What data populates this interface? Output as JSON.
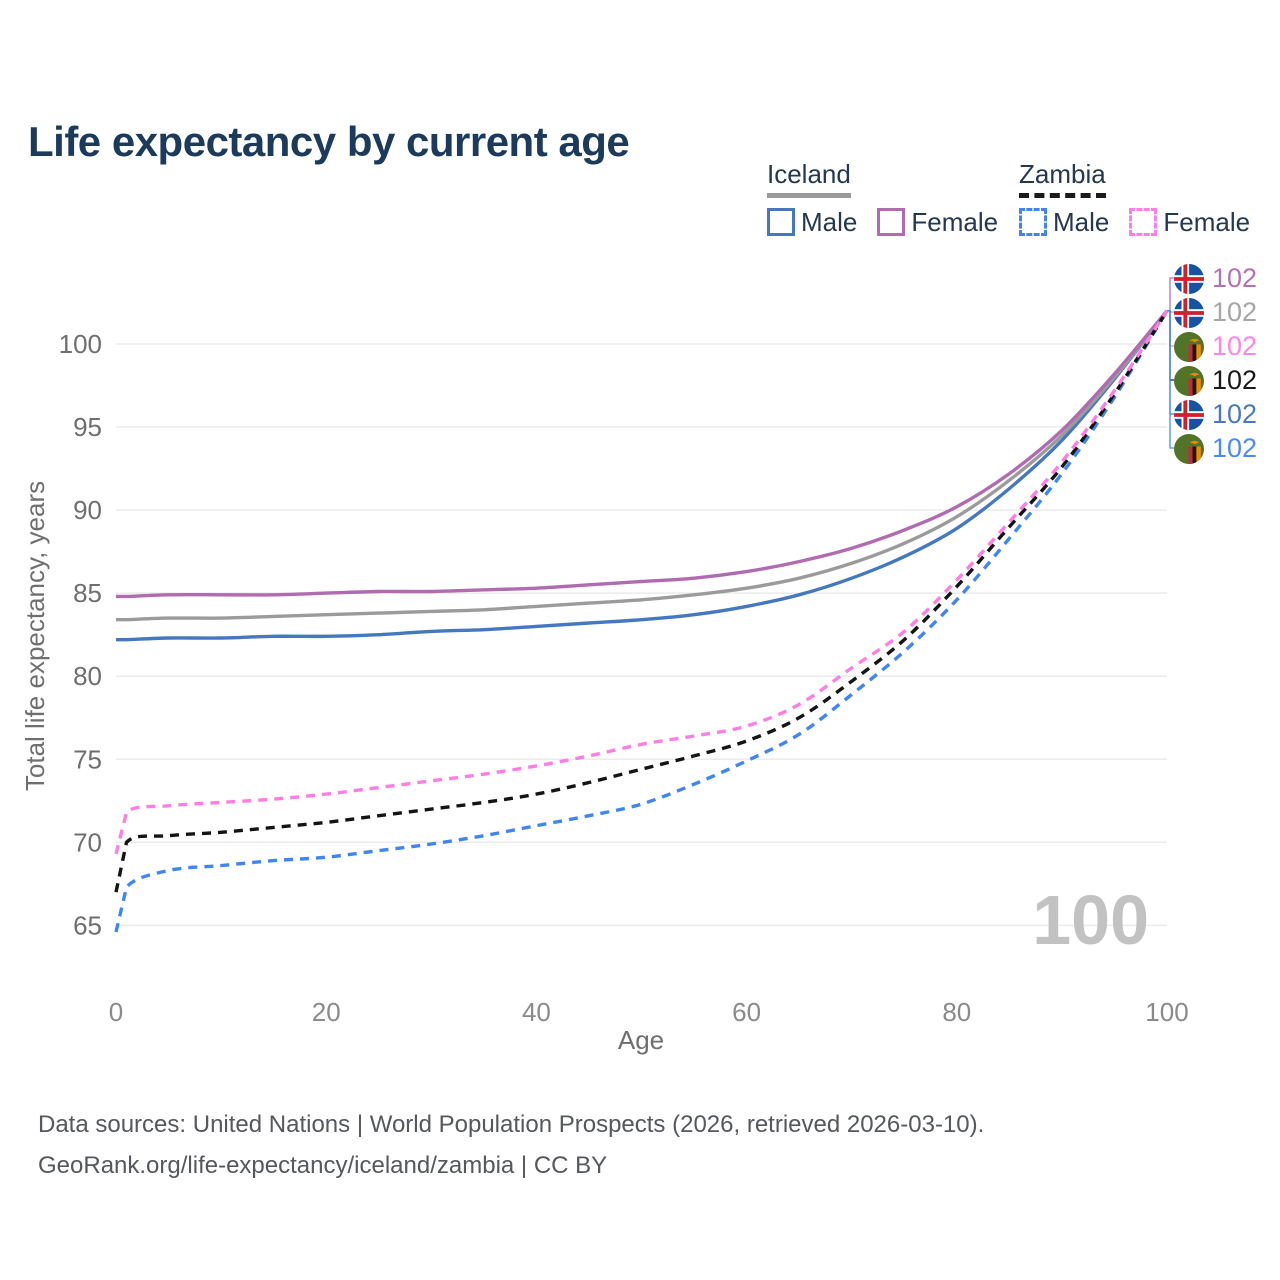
{
  "title": "Life expectancy by current age",
  "legend": {
    "groups": [
      {
        "label": "Iceland",
        "line_style": "solid",
        "underline_color": "#9a9a9a",
        "items": [
          {
            "label": "Male",
            "color": "#4678c0"
          },
          {
            "label": "Female",
            "color": "#b16bb0"
          }
        ]
      },
      {
        "label": "Zambia",
        "line_style": "dashed",
        "underline_color": "#1a1a1a",
        "items": [
          {
            "label": "Male",
            "color": "#4186f0"
          },
          {
            "label": "Female",
            "color": "#ff7ee3"
          }
        ]
      }
    ]
  },
  "chart_data": {
    "type": "line",
    "title": "Life expectancy by current age",
    "xlabel": "Age",
    "ylabel": "Total life expectancy, years",
    "xlim": [
      0,
      100
    ],
    "ylim": [
      63.5,
      103.5
    ],
    "xticks": [
      0,
      20,
      40,
      60,
      80,
      100
    ],
    "yticks": [
      65,
      70,
      75,
      80,
      85,
      90,
      95,
      100
    ],
    "grid": "horizontal",
    "legend_position": "top-right",
    "x": [
      0,
      1,
      5,
      10,
      15,
      20,
      25,
      30,
      35,
      40,
      45,
      50,
      55,
      60,
      65,
      70,
      75,
      80,
      85,
      90,
      95,
      100
    ],
    "series": [
      {
        "name": "Iceland Male",
        "country": "Iceland",
        "sex": "Male",
        "color": "#4678c0",
        "dash": false,
        "values": [
          82.2,
          82.2,
          82.3,
          82.3,
          82.4,
          82.4,
          82.5,
          82.7,
          82.8,
          83.0,
          83.2,
          83.4,
          83.7,
          84.2,
          84.9,
          85.9,
          87.2,
          88.9,
          91.3,
          94.2,
          97.9,
          102
        ]
      },
      {
        "name": "Iceland Average",
        "country": "Iceland",
        "sex": "All",
        "color": "#9b9b9b",
        "dash": false,
        "values": [
          83.4,
          83.4,
          83.5,
          83.5,
          83.6,
          83.7,
          83.8,
          83.9,
          84.0,
          84.2,
          84.4,
          84.6,
          84.9,
          85.3,
          85.9,
          86.8,
          88.0,
          89.6,
          91.8,
          94.5,
          98.0,
          102
        ]
      },
      {
        "name": "Iceland Female",
        "country": "Iceland",
        "sex": "Female",
        "color": "#b16bb0",
        "dash": false,
        "values": [
          84.8,
          84.8,
          84.9,
          84.9,
          84.9,
          85.0,
          85.1,
          85.1,
          85.2,
          85.3,
          85.5,
          85.7,
          85.9,
          86.3,
          86.9,
          87.7,
          88.8,
          90.2,
          92.2,
          94.8,
          98.2,
          102
        ]
      },
      {
        "name": "Zambia Male",
        "country": "Zambia",
        "sex": "Male",
        "color": "#4186f0",
        "dash": true,
        "values": [
          64.6,
          67.3,
          68.3,
          68.6,
          68.9,
          69.1,
          69.5,
          69.9,
          70.4,
          71.0,
          71.6,
          72.3,
          73.5,
          74.9,
          76.5,
          78.9,
          81.5,
          84.6,
          88.3,
          92.2,
          96.8,
          102
        ]
      },
      {
        "name": "Zambia Average",
        "country": "Zambia",
        "sex": "All",
        "color": "#141414",
        "dash": true,
        "values": [
          67.0,
          70.0,
          70.4,
          70.6,
          70.9,
          71.2,
          71.6,
          72.0,
          72.4,
          72.9,
          73.6,
          74.4,
          75.2,
          76.1,
          77.5,
          79.7,
          82.2,
          85.4,
          89.0,
          92.6,
          97.0,
          102
        ]
      },
      {
        "name": "Zambia Female",
        "country": "Zambia",
        "sex": "Female",
        "color": "#ff7ee3",
        "dash": true,
        "values": [
          69.3,
          71.8,
          72.2,
          72.4,
          72.6,
          72.9,
          73.3,
          73.7,
          74.1,
          74.6,
          75.2,
          75.9,
          76.4,
          77.0,
          78.3,
          80.5,
          82.7,
          85.8,
          89.3,
          92.9,
          97.2,
          102
        ]
      }
    ]
  },
  "end_labels": [
    {
      "series": "Iceland Female",
      "flag": "iceland",
      "value": "102",
      "color": "#b273b2"
    },
    {
      "series": "Iceland Average",
      "flag": "iceland",
      "value": "102",
      "color": "#a6a6a6"
    },
    {
      "series": "Zambia Female",
      "flag": "zambia",
      "value": "102",
      "color": "#ff85e6"
    },
    {
      "series": "Zambia Average",
      "flag": "zambia",
      "value": "102",
      "color": "#1a1a1a"
    },
    {
      "series": "Iceland Male",
      "flag": "iceland",
      "value": "102",
      "color": "#4a79bd"
    },
    {
      "series": "Zambia Male",
      "flag": "zambia",
      "value": "102",
      "color": "#4c8bf5"
    }
  ],
  "watermark": "100",
  "footer": {
    "line1": "Data sources: United Nations | World Population Prospects (2026, retrieved 2026-03-10).",
    "line2": "GeoRank.org/life-expectancy/iceland/zambia | CC BY"
  }
}
